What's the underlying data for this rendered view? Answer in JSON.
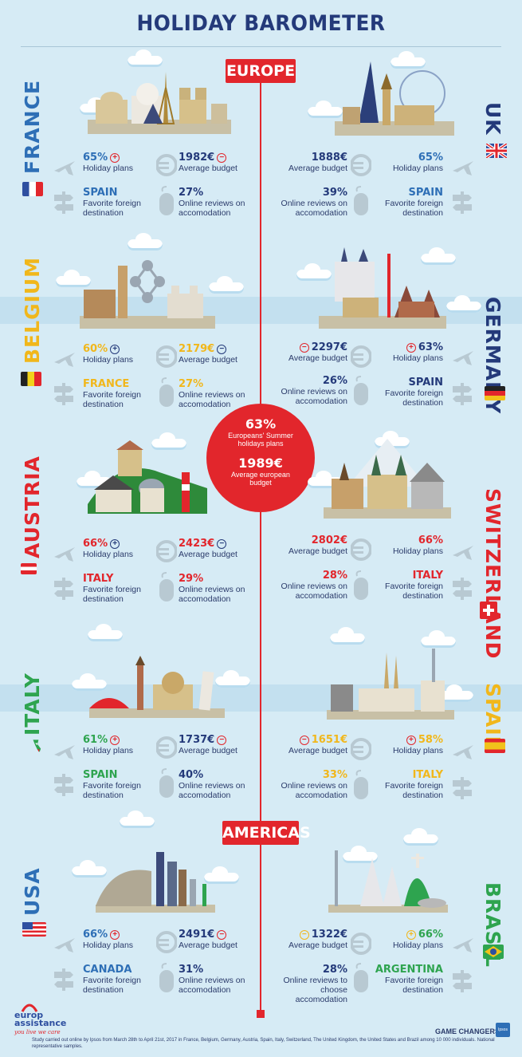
{
  "title": "HOLIDAY BAROMETER",
  "regions": {
    "europe": "EUROPE",
    "americas": "AMERICAS"
  },
  "center": {
    "plans_value": "63%",
    "plans_label": "Europeans' Summer holidays plans",
    "budget_value": "1989€",
    "budget_label": "Average european budget"
  },
  "labels": {
    "holiday_plans": "Holiday plans",
    "average_budget": "Average budget",
    "favorite_destination": "Favorite foreign destination",
    "online_reviews": "Online reviews on accomodation",
    "online_reviews_brasil": "Online reviews to choose accomodation"
  },
  "countries": {
    "france": {
      "name": "FRANCE",
      "plans": "65%",
      "budget": "1982€",
      "destination": "SPAIN",
      "reviews": "27%"
    },
    "uk": {
      "name": "UK",
      "plans": "65%",
      "budget": "1888€",
      "destination": "SPAIN",
      "reviews": "39%"
    },
    "belgium": {
      "name": "BELGIUM",
      "plans": "60%",
      "budget": "2179€",
      "destination": "FRANCE",
      "reviews": "27%"
    },
    "germany": {
      "name": "GERMANY",
      "plans": "63%",
      "budget": "2297€",
      "destination": "SPAIN",
      "reviews": "26%"
    },
    "austria": {
      "name": "AUSTRIA",
      "plans": "66%",
      "budget": "2423€",
      "destination": "ITALY",
      "reviews": "29%"
    },
    "switzerland": {
      "name": "SWITZERLAND",
      "plans": "66%",
      "budget": "2802€",
      "destination": "ITALY",
      "reviews": "28%"
    },
    "italy": {
      "name": "ITALY",
      "plans": "61%",
      "budget": "1737€",
      "destination": "SPAIN",
      "reviews": "40%"
    },
    "spain": {
      "name": "SPAIN",
      "plans": "58%",
      "budget": "1651€",
      "destination": "ITALY",
      "reviews": "33%"
    },
    "usa": {
      "name": "USA",
      "plans": "66%",
      "budget": "2491€",
      "destination": "CANADA",
      "reviews": "31%"
    },
    "brasil": {
      "name": "BRASIL",
      "plans": "66%",
      "budget": "1322€",
      "destination": "ARGENTINA",
      "reviews": "28%"
    }
  },
  "footer": {
    "logo_line1": "europ",
    "logo_line2": "assistance",
    "tagline": "you live we care",
    "game_changers": "GAME CHANGERS",
    "ipsos": "Ipsos",
    "note": "Study carried out online by Ipsos from March 28th to April 21st, 2017 in France, Belgium, Germany, Austria, Spain, Italy, Switzerland, The United Kingdom, the United States and Brazil among 10 000 individuals. National representative samples."
  },
  "colors": {
    "red": "#e2262c",
    "navy": "#243a7a",
    "blue": "#2e6fb6",
    "yellow": "#f1b71b",
    "green": "#2ea44f",
    "background": "#d6ebf5"
  },
  "icons": [
    "plane-icon",
    "euro-icon",
    "signpost-icon",
    "mouse-icon",
    "plus-icon",
    "minus-icon"
  ]
}
